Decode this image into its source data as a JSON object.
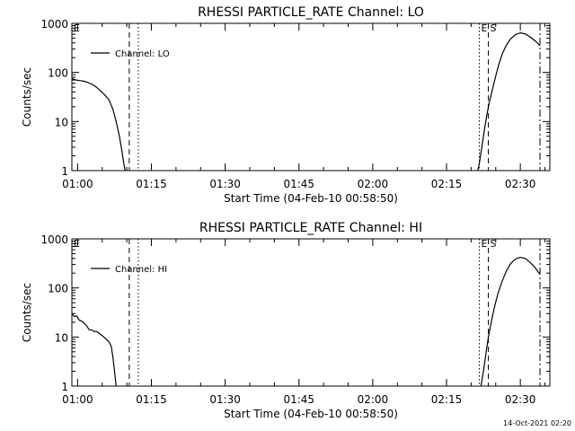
{
  "footer_text": "14-Oct-2021 02:20",
  "chart_data": [
    {
      "type": "line",
      "title": "RHESSI PARTICLE_RATE Channel: LO",
      "xlabel": "Start Time (04-Feb-10 00:58:50)",
      "ylabel": "Counts/sec",
      "xlim": [
        "00:58:50",
        "02:36:00"
      ],
      "ylim": [
        1,
        1000
      ],
      "yscale": "log",
      "x_ticks": [
        "01:00",
        "01:15",
        "01:30",
        "01:45",
        "02:00",
        "02:15",
        "02:30"
      ],
      "y_ticks": [
        "1",
        "10",
        "100",
        "1000"
      ],
      "legend": {
        "label": "Channel: LO",
        "placement": "top-left"
      },
      "event_markers": [
        {
          "label": "E",
          "time": "00:58:50",
          "style": "solid"
        },
        {
          "label": "",
          "time": "01:10:30",
          "style": "dashed"
        },
        {
          "label": "",
          "time": "01:12:20",
          "style": "dotted"
        },
        {
          "label": "E",
          "time": "02:21:40",
          "style": "dotted"
        },
        {
          "label": "S",
          "time": "02:23:30",
          "style": "dashed"
        },
        {
          "label": "",
          "time": "02:34:00",
          "style": "dashdot"
        }
      ],
      "segments": [
        {
          "name": "Channel: LO",
          "points": [
            [
              "00:58:50",
              75
            ],
            [
              "00:59:40",
              70
            ],
            [
              "01:00:30",
              68
            ],
            [
              "01:01:20",
              66
            ],
            [
              "01:02:10",
              62
            ],
            [
              "01:03:00",
              57
            ],
            [
              "01:03:50",
              50
            ],
            [
              "01:04:40",
              42
            ],
            [
              "01:05:30",
              35
            ],
            [
              "01:06:20",
              28
            ],
            [
              "01:07:10",
              18
            ],
            [
              "01:07:50",
              10
            ],
            [
              "01:08:30",
              5
            ],
            [
              "01:09:00",
              2.5
            ],
            [
              "01:09:20",
              1.5
            ],
            [
              "01:09:40",
              1.0
            ]
          ]
        },
        {
          "name": "Channel: LO",
          "points": [
            [
              "02:21:20",
              1.0
            ],
            [
              "02:21:40",
              1.4
            ],
            [
              "02:22:10",
              3
            ],
            [
              "02:22:40",
              6.5
            ],
            [
              "02:23:10",
              13
            ],
            [
              "02:23:40",
              24
            ],
            [
              "02:24:20",
              45
            ],
            [
              "02:25:00",
              85
            ],
            [
              "02:25:40",
              150
            ],
            [
              "02:26:20",
              240
            ],
            [
              "02:27:10",
              360
            ],
            [
              "02:28:00",
              480
            ],
            [
              "02:29:00",
              590
            ],
            [
              "02:30:00",
              640
            ],
            [
              "02:31:00",
              610
            ],
            [
              "02:32:00",
              530
            ],
            [
              "02:33:00",
              440
            ],
            [
              "02:33:40",
              380
            ],
            [
              "02:34:00",
              350
            ]
          ]
        }
      ]
    },
    {
      "type": "line",
      "title": "RHESSI PARTICLE_RATE Channel: HI",
      "xlabel": "Start Time (04-Feb-10 00:58:50)",
      "ylabel": "Counts/sec",
      "xlim": [
        "00:58:50",
        "02:36:00"
      ],
      "ylim": [
        1,
        1000
      ],
      "yscale": "log",
      "x_ticks": [
        "01:00",
        "01:15",
        "01:30",
        "01:45",
        "02:00",
        "02:15",
        "02:30"
      ],
      "y_ticks": [
        "1",
        "10",
        "100",
        "1000"
      ],
      "legend": {
        "label": "Channel: HI",
        "placement": "top-left"
      },
      "event_markers": [
        {
          "label": "E",
          "time": "00:58:50",
          "style": "solid"
        },
        {
          "label": "",
          "time": "01:10:30",
          "style": "dashed"
        },
        {
          "label": "",
          "time": "01:12:20",
          "style": "dotted"
        },
        {
          "label": "E",
          "time": "02:21:40",
          "style": "dotted"
        },
        {
          "label": "S",
          "time": "02:23:30",
          "style": "dashed"
        },
        {
          "label": "",
          "time": "02:34:00",
          "style": "dashdot"
        }
      ],
      "segments": [
        {
          "name": "Channel: HI",
          "points": [
            [
              "00:58:50",
              30
            ],
            [
              "00:59:20",
              26
            ],
            [
              "00:59:50",
              27
            ],
            [
              "01:00:20",
              22
            ],
            [
              "01:00:50",
              21
            ],
            [
              "01:01:20",
              19
            ],
            [
              "01:01:50",
              17
            ],
            [
              "01:02:20",
              14
            ],
            [
              "01:02:50",
              14
            ],
            [
              "01:03:20",
              13
            ],
            [
              "01:03:50",
              13
            ],
            [
              "01:04:20",
              12
            ],
            [
              "01:04:50",
              11
            ],
            [
              "01:05:20",
              10
            ],
            [
              "01:05:50",
              9
            ],
            [
              "01:06:20",
              8
            ],
            [
              "01:06:50",
              6.5
            ],
            [
              "01:07:10",
              4
            ],
            [
              "01:07:30",
              2
            ],
            [
              "01:07:50",
              1.0
            ]
          ]
        },
        {
          "name": "Channel: HI",
          "points": [
            [
              "02:22:00",
              1.0
            ],
            [
              "02:22:30",
              2
            ],
            [
              "02:23:00",
              4.5
            ],
            [
              "02:23:30",
              10
            ],
            [
              "02:24:10",
              22
            ],
            [
              "02:24:50",
              45
            ],
            [
              "02:25:30",
              80
            ],
            [
              "02:26:20",
              140
            ],
            [
              "02:27:10",
              220
            ],
            [
              "02:28:00",
              310
            ],
            [
              "02:29:00",
              390
            ],
            [
              "02:30:00",
              420
            ],
            [
              "02:31:00",
              400
            ],
            [
              "02:32:00",
              330
            ],
            [
              "02:33:00",
              260
            ],
            [
              "02:33:40",
              210
            ],
            [
              "02:34:00",
              190
            ]
          ]
        }
      ]
    }
  ]
}
